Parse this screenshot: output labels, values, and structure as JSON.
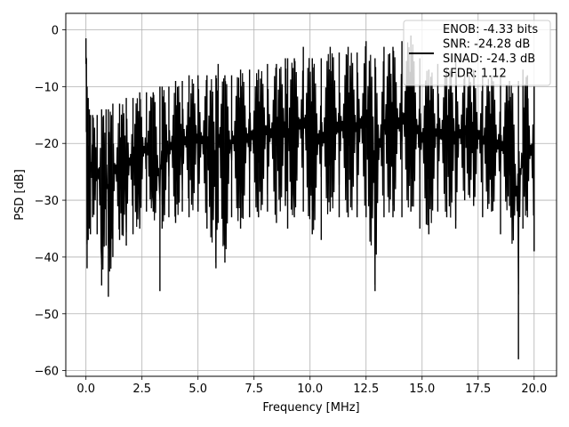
{
  "chart_data": {
    "type": "line",
    "xlabel": "Frequency [MHz]",
    "ylabel": "PSD [dB]",
    "xlim": [
      -0.9,
      21.0
    ],
    "ylim": [
      -61.0,
      2.9
    ],
    "xticks": [
      0.0,
      2.5,
      5.0,
      7.5,
      10.0,
      12.5,
      15.0,
      17.5,
      20.0
    ],
    "xtick_labels": [
      "0.0",
      "2.5",
      "5.0",
      "7.5",
      "10.0",
      "12.5",
      "15.0",
      "17.5",
      "20.0"
    ],
    "yticks": [
      0,
      -10,
      -20,
      -30,
      -40,
      -50,
      -60
    ],
    "ytick_labels": [
      "0",
      "−10",
      "−20",
      "−30",
      "−40",
      "−50",
      "−60"
    ],
    "grid": true,
    "legend_position": "top-right",
    "legend_lines": [
      "ENOB: -4.33 bits",
      "SNR: -24.28 dB",
      "SINAD: -24.3 dB",
      "SFDR: 1.12"
    ],
    "line_color": "#000000",
    "series": [
      {
        "x": [
          0.0,
          0.02,
          0.05,
          0.1,
          0.15,
          0.2,
          0.3,
          0.5,
          0.7,
          0.9,
          1.0,
          1.2,
          1.5,
          1.8,
          2.1,
          2.4,
          2.7,
          3.0,
          3.3,
          3.4,
          3.7,
          4.0,
          4.3,
          4.6,
          5.0,
          5.4,
          5.8,
          5.9,
          6.2,
          6.5,
          6.9,
          7.3,
          7.7,
          8.1,
          8.5,
          8.9,
          9.0,
          9.3,
          9.7,
          10.1,
          10.5,
          10.9,
          11.3,
          11.7,
          12.1,
          12.5,
          12.9,
          13.3,
          13.7,
          14.1,
          14.5,
          14.9,
          15.3,
          15.7,
          16.1,
          16.5,
          16.9,
          17.3,
          17.7,
          18.1,
          18.5,
          18.9,
          19.3,
          19.5,
          19.7,
          20.0
        ],
        "y_min": [
          -6.0,
          -18.0,
          -42.0,
          -37.0,
          -35.0,
          -36.0,
          -33.0,
          -36.0,
          -45.0,
          -38.0,
          -47.0,
          -40.0,
          -37.0,
          -38.0,
          -36.0,
          -35.0,
          -32.0,
          -32.0,
          -46.0,
          -35.0,
          -33.0,
          -34.0,
          -32.0,
          -33.0,
          -32.0,
          -35.0,
          -42.0,
          -34.0,
          -41.0,
          -33.0,
          -35.0,
          -33.0,
          -33.0,
          -32.0,
          -34.0,
          -31.0,
          -35.0,
          -33.0,
          -32.0,
          -36.0,
          -37.0,
          -32.0,
          -33.0,
          -33.0,
          -33.0,
          -33.0,
          -46.0,
          -33.0,
          -33.0,
          -33.0,
          -32.0,
          -35.0,
          -36.0,
          -32.0,
          -33.0,
          -35.0,
          -30.0,
          -31.0,
          -33.0,
          -32.0,
          -36.0,
          -31.0,
          -58.0,
          -35.0,
          -33.0,
          -39.0
        ],
        "y_max": [
          -1.5,
          -5.0,
          -10.0,
          -12.0,
          -14.0,
          -15.0,
          -15.0,
          -15.0,
          -14.0,
          -14.0,
          -14.0,
          -13.0,
          -13.0,
          -12.0,
          -12.0,
          -11.0,
          -11.0,
          -11.0,
          -10.0,
          -10.0,
          -10.0,
          -9.0,
          -9.0,
          -8.0,
          -8.0,
          -8.0,
          -8.0,
          -6.0,
          -8.0,
          -8.0,
          -7.0,
          -7.0,
          -7.0,
          -6.0,
          -6.0,
          -5.0,
          -5.0,
          -5.0,
          -3.0,
          -5.0,
          -5.0,
          -3.0,
          -4.0,
          -3.0,
          -4.0,
          -2.0,
          -5.0,
          -3.0,
          -3.0,
          -2.0,
          -1.0,
          -5.0,
          -7.0,
          -6.0,
          -7.0,
          -5.0,
          -8.0,
          -7.0,
          -8.0,
          -8.0,
          -8.0,
          -9.0,
          -9.0,
          -7.0,
          -8.0,
          -10.0
        ]
      }
    ]
  }
}
